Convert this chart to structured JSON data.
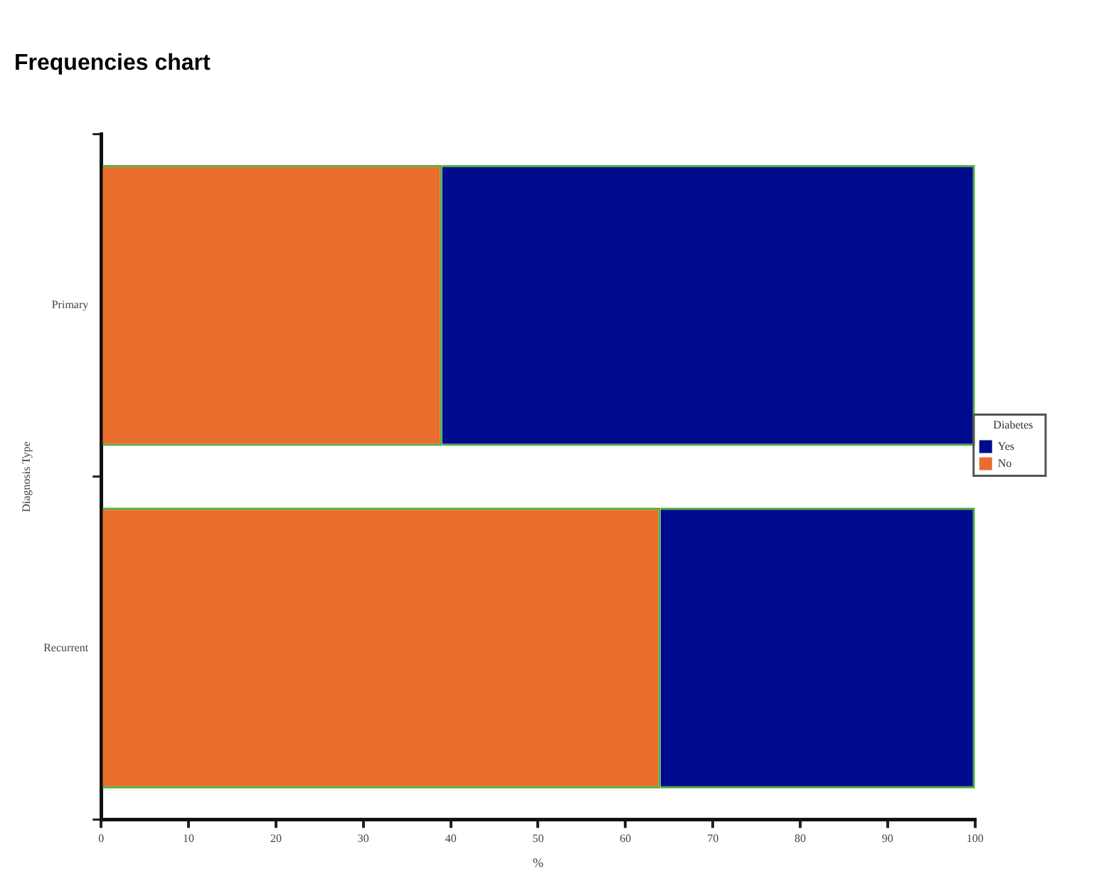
{
  "chart_data": {
    "type": "bar",
    "title": "Frequencies chart",
    "orientation": "horizontal",
    "stacked": true,
    "xlabel": "%",
    "ylabel": "Diagnosis Type",
    "legend_title": "Diabetes",
    "legend": "right",
    "categories": [
      "Primary",
      "Recurrent"
    ],
    "series": [
      {
        "name": "No",
        "color": "#e96d2c",
        "values": [
          39,
          64
        ]
      },
      {
        "name": "Yes",
        "color": "#000a8c",
        "values": [
          61,
          36
        ]
      }
    ],
    "xlim": [
      0,
      100
    ],
    "xticks": [
      0,
      10,
      20,
      30,
      40,
      50,
      60,
      70,
      80,
      90,
      100
    ]
  }
}
